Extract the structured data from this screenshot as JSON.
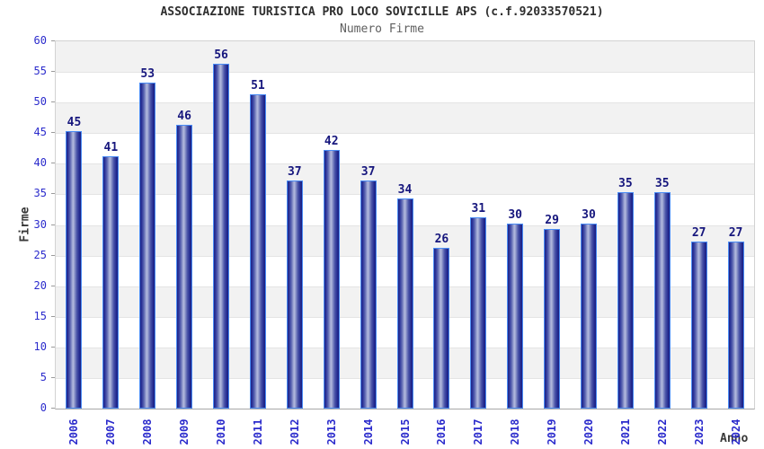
{
  "chart_data": {
    "type": "bar",
    "title": "ASSOCIAZIONE TURISTICA PRO LOCO SOVICILLE APS (c.f.92033570521)",
    "subtitle": "Numero Firme",
    "xlabel": "Anno",
    "ylabel": "Firme",
    "categories": [
      "2006",
      "2007",
      "2008",
      "2009",
      "2010",
      "2011",
      "2012",
      "2013",
      "2014",
      "2015",
      "2016",
      "2017",
      "2018",
      "2019",
      "2020",
      "2021",
      "2022",
      "2023",
      "2024"
    ],
    "values": [
      45,
      41,
      53,
      46,
      56,
      51,
      37,
      42,
      37,
      34,
      26,
      31,
      30,
      29,
      30,
      35,
      35,
      27,
      27
    ],
    "ylim": [
      0,
      60
    ],
    "y_ticks": [
      0,
      5,
      10,
      15,
      20,
      25,
      30,
      35,
      40,
      45,
      50,
      55,
      60
    ],
    "grid": "alternating-horizontal-bands",
    "legend": "none",
    "colors": {
      "bar_fill_dark": "#1d2384",
      "bar_fill_light": "#b4bade",
      "bar_border": "#4a8cf5",
      "value_label": "#16167d",
      "axis_text": "#2b2bcc",
      "band_gray": "#f2f2f2",
      "band_white": "#ffffff",
      "title_text": "#2e2e2e",
      "subtitle_text": "#5f5f5f",
      "axis_title_text": "#383838",
      "plot_border": "#d2d2d2"
    }
  }
}
